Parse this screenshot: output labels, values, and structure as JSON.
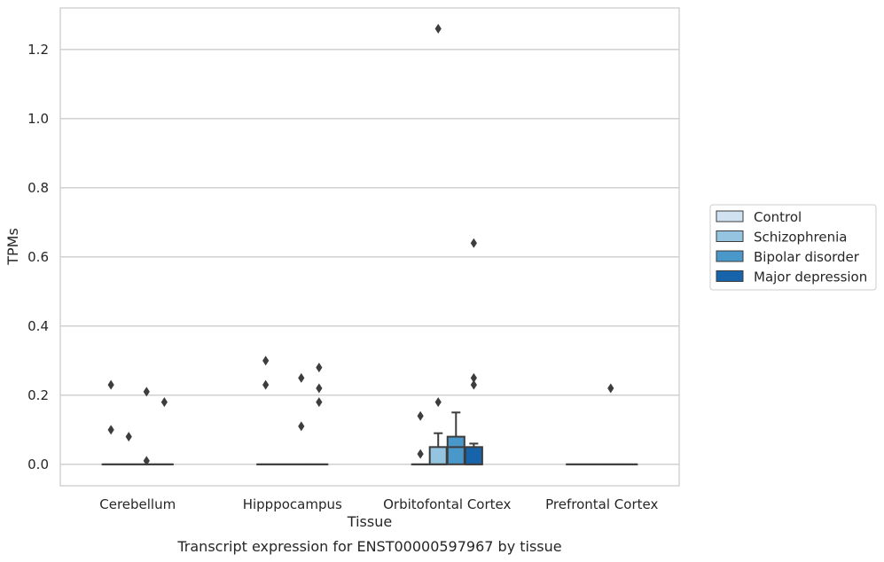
{
  "chart_data": {
    "type": "box",
    "xlabel": "Tissue",
    "ylabel": "TPMs",
    "caption": "Transcript expression for ENST00000597967 by tissue",
    "ylim": [
      -0.062,
      1.32
    ],
    "yticks": [
      0.0,
      0.2,
      0.4,
      0.6,
      0.8,
      1.0,
      1.2
    ],
    "ytick_labels": [
      "0.0",
      "0.2",
      "0.4",
      "0.6",
      "0.8",
      "1.0",
      "1.2"
    ],
    "grid": true,
    "legend_position": "right",
    "categories": [
      "Cerebellum",
      "Hipppocampus",
      "Orbitofontal Cortex",
      "Prefrontal Cortex"
    ],
    "series": [
      {
        "name": "Control",
        "color": "#d0e1f2",
        "boxes": [
          {
            "q1": 0,
            "median": 0,
            "q3": 0,
            "whisker_low": 0,
            "whisker_high": 0,
            "outliers": [
              0.23,
              0.1
            ]
          },
          {
            "q1": 0,
            "median": 0,
            "q3": 0,
            "whisker_low": 0,
            "whisker_high": 0,
            "outliers": [
              0.3,
              0.23
            ]
          },
          {
            "q1": 0,
            "median": 0,
            "q3": 0,
            "whisker_low": 0,
            "whisker_high": 0,
            "outliers": [
              0.14,
              0.03
            ]
          },
          {
            "q1": 0,
            "median": 0,
            "q3": 0,
            "whisker_low": 0,
            "whisker_high": 0,
            "outliers": []
          }
        ]
      },
      {
        "name": "Schizophrenia",
        "color": "#94c4df",
        "boxes": [
          {
            "q1": 0,
            "median": 0,
            "q3": 0,
            "whisker_low": 0,
            "whisker_high": 0,
            "outliers": [
              0.08
            ]
          },
          {
            "q1": 0,
            "median": 0,
            "q3": 0,
            "whisker_low": 0,
            "whisker_high": 0,
            "outliers": []
          },
          {
            "q1": 0,
            "median": 0,
            "q3": 0.05,
            "whisker_low": 0,
            "whisker_high": 0.09,
            "outliers": [
              1.26,
              0.18
            ]
          },
          {
            "q1": 0,
            "median": 0,
            "q3": 0,
            "whisker_low": 0,
            "whisker_high": 0,
            "outliers": []
          }
        ]
      },
      {
        "name": "Bipolar disorder",
        "color": "#4a98c9",
        "boxes": [
          {
            "q1": 0,
            "median": 0,
            "q3": 0,
            "whisker_low": 0,
            "whisker_high": 0,
            "outliers": [
              0.21,
              0.01
            ]
          },
          {
            "q1": 0,
            "median": 0,
            "q3": 0,
            "whisker_low": 0,
            "whisker_high": 0,
            "outliers": [
              0.25,
              0.11
            ]
          },
          {
            "q1": 0,
            "median": 0.05,
            "q3": 0.08,
            "whisker_low": 0,
            "whisker_high": 0.15,
            "outliers": []
          },
          {
            "q1": 0,
            "median": 0,
            "q3": 0,
            "whisker_low": 0,
            "whisker_high": 0,
            "outliers": [
              0.22
            ]
          }
        ]
      },
      {
        "name": "Major depression",
        "color": "#1764ab",
        "boxes": [
          {
            "q1": 0,
            "median": 0,
            "q3": 0,
            "whisker_low": 0,
            "whisker_high": 0,
            "outliers": [
              0.18
            ]
          },
          {
            "q1": 0,
            "median": 0,
            "q3": 0,
            "whisker_low": 0,
            "whisker_high": 0,
            "outliers": [
              0.28,
              0.22,
              0.18
            ]
          },
          {
            "q1": 0,
            "median": 0,
            "q3": 0.05,
            "whisker_low": 0,
            "whisker_high": 0.06,
            "outliers": [
              0.64,
              0.25,
              0.23
            ]
          },
          {
            "q1": 0,
            "median": 0,
            "q3": 0,
            "whisker_low": 0,
            "whisker_high": 0,
            "outliers": []
          }
        ]
      }
    ]
  }
}
